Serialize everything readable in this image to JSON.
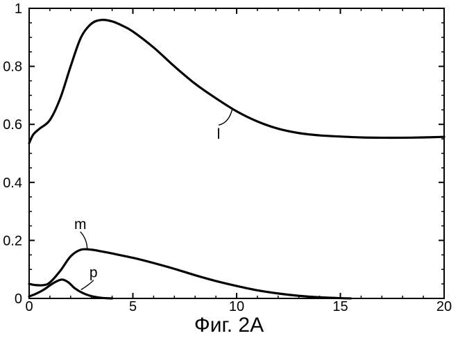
{
  "chart_data": {
    "type": "line",
    "caption": "Фиг. 2А",
    "title": "",
    "xlabel": "",
    "ylabel": "",
    "xlim": [
      0,
      20
    ],
    "ylim": [
      0,
      1
    ],
    "xticks": [
      0,
      5,
      10,
      15,
      20
    ],
    "xtick_labels": [
      "0",
      "5",
      "10",
      "15",
      "20"
    ],
    "yticks": [
      0,
      0.2,
      0.4,
      0.6,
      0.8,
      1
    ],
    "ytick_labels": [
      "0",
      "0.2",
      "0.4",
      "0.6",
      "0.8",
      "1"
    ],
    "grid": false,
    "line_color": "#000000",
    "series": [
      {
        "name": "l",
        "x": [
          0,
          0.2,
          0.5,
          1.0,
          1.5,
          2.0,
          2.5,
          3.0,
          3.5,
          4.0,
          4.5,
          5.0,
          6.0,
          7.0,
          8.0,
          9.0,
          10.0,
          11.0,
          12.0,
          13.0,
          14.0,
          15.0,
          16.0,
          17.0,
          18.0,
          19.0,
          20.0
        ],
        "y": [
          0.535,
          0.565,
          0.585,
          0.615,
          0.69,
          0.8,
          0.9,
          0.947,
          0.96,
          0.955,
          0.94,
          0.92,
          0.865,
          0.8,
          0.74,
          0.69,
          0.645,
          0.61,
          0.585,
          0.57,
          0.562,
          0.558,
          0.555,
          0.554,
          0.554,
          0.555,
          0.557
        ]
      },
      {
        "name": "m",
        "x": [
          0,
          0.3,
          0.7,
          1.0,
          1.5,
          2.0,
          2.5,
          3.0,
          3.5,
          4.0,
          5.0,
          6.0,
          7.0,
          8.0,
          9.0,
          10.0,
          11.0,
          12.0,
          13.0,
          14.0,
          15.0,
          15.5
        ],
        "y": [
          0.05,
          0.046,
          0.046,
          0.055,
          0.095,
          0.145,
          0.168,
          0.168,
          0.162,
          0.155,
          0.14,
          0.122,
          0.102,
          0.08,
          0.06,
          0.043,
          0.028,
          0.017,
          0.009,
          0.004,
          0.001,
          0.0
        ]
      },
      {
        "name": "p",
        "x": [
          0,
          0.3,
          0.7,
          1.0,
          1.3,
          1.6,
          1.9,
          2.2,
          2.6,
          3.0,
          3.5,
          4.0
        ],
        "y": [
          0.007,
          0.015,
          0.03,
          0.045,
          0.058,
          0.065,
          0.055,
          0.035,
          0.018,
          0.008,
          0.002,
          0.0
        ]
      }
    ],
    "annotations": [
      {
        "text": "l",
        "series": "l",
        "x": 9.8,
        "y": 0.655
      },
      {
        "text": "m",
        "series": "m",
        "x": 2.8,
        "y": 0.168
      },
      {
        "text": "p",
        "series": "p",
        "x": 2.5,
        "y": 0.03
      }
    ]
  }
}
